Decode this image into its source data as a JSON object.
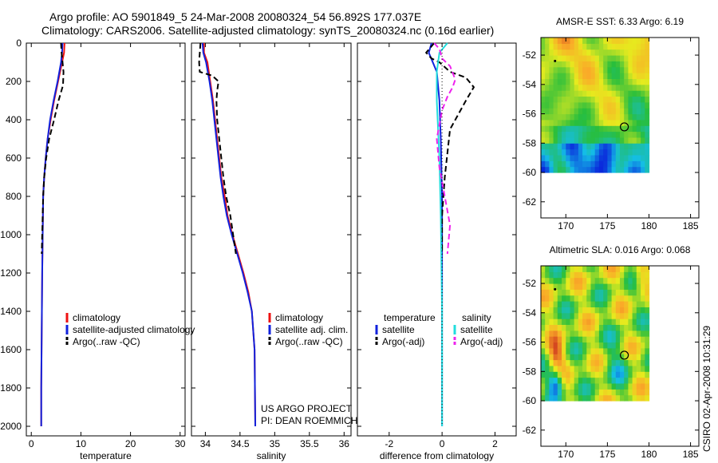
{
  "page": {
    "title_line1": "Argo profile: AO 5901849_5 24-Mar-2008 20080324_54 56.892S 177.037E",
    "title_line2": "Climatology: CARS2006. Satellite-adjusted climatology: synTS_20080324.nc (0.16d earlier)",
    "credit": "US ARGO PROJECT",
    "pi": "PI: DEAN ROEMMICH",
    "stamp": "CSIRO 02-Apr-2008 10:31:29"
  },
  "colors": {
    "red": "#ee1111",
    "blue": "#1122dd",
    "black": "#000000",
    "cyan": "#22dddd",
    "magenta": "#ee22ee"
  },
  "chart_data": [
    {
      "type": "line",
      "xlabel": "temperature",
      "ylabel": "",
      "xlim": [
        -1,
        31
      ],
      "ylim": [
        2050,
        0
      ],
      "xticks": [
        "0",
        "10",
        "20",
        "30"
      ],
      "xtick_values": [
        0,
        10,
        20,
        30
      ],
      "yticks": [
        "0",
        "200",
        "400",
        "600",
        "800",
        "1000",
        "1200",
        "1400",
        "1600",
        "1800",
        "2000"
      ],
      "ytick_values": [
        0,
        200,
        400,
        600,
        800,
        1000,
        1200,
        1400,
        1600,
        1800,
        2000
      ],
      "legend": {
        "position": "lower-left",
        "entries": [
          {
            "label": "climatology",
            "color": "red",
            "dash": "solid"
          },
          {
            "label": "satellite-adjusted climatology",
            "color": "blue",
            "dash": "solid"
          },
          {
            "label": "Argo(..raw -QC)",
            "color": "black",
            "dash": "dashed"
          }
        ]
      },
      "series": [
        {
          "name": "climatology",
          "color": "red",
          "dash": "solid",
          "x": [
            6.7,
            6.6,
            6.2,
            5.4,
            4.6,
            3.9,
            3.3,
            2.9,
            2.6,
            2.4,
            2.3,
            2.2,
            2.1,
            2.0,
            2.0
          ],
          "y": [
            0,
            50,
            100,
            200,
            300,
            400,
            500,
            600,
            700,
            800,
            1000,
            1200,
            1500,
            1800,
            2000
          ]
        },
        {
          "name": "satellite-adjusted climatology",
          "color": "blue",
          "dash": "solid",
          "x": [
            6.3,
            6.2,
            6.0,
            5.3,
            4.5,
            3.8,
            3.3,
            2.9,
            2.6,
            2.4,
            2.3,
            2.2,
            2.1,
            2.0,
            2.0
          ],
          "y": [
            0,
            50,
            100,
            200,
            300,
            400,
            500,
            600,
            700,
            800,
            1000,
            1200,
            1500,
            1800,
            2000
          ]
        },
        {
          "name": "Argo(..raw -QC)",
          "color": "black",
          "dash": "dashed",
          "x": [
            6.0,
            6.1,
            6.3,
            6.5,
            6.4,
            5.5,
            4.6,
            3.6,
            3.0,
            2.6,
            2.4,
            2.3,
            2.2,
            2.1
          ],
          "y": [
            0,
            50,
            100,
            150,
            220,
            300,
            400,
            500,
            600,
            700,
            800,
            900,
            1000,
            1100
          ]
        }
      ]
    },
    {
      "type": "line",
      "xlabel": "salinity",
      "xlim": [
        33.8,
        36.1
      ],
      "ylim": [
        2050,
        0
      ],
      "xticks": [
        "34",
        "34.5",
        "35",
        "35.5",
        "36"
      ],
      "xtick_values": [
        34,
        34.5,
        35,
        35.5,
        36
      ],
      "yticks": [],
      "ytick_values": [
        0,
        200,
        400,
        600,
        800,
        1000,
        1200,
        1400,
        1600,
        1800,
        2000
      ],
      "legend": {
        "position": "lower-center",
        "entries": [
          {
            "label": "climatology",
            "color": "red",
            "dash": "solid"
          },
          {
            "label": "satellite adj. clim.",
            "color": "blue",
            "dash": "solid"
          },
          {
            "label": "Argo(..raw -QC)",
            "color": "black",
            "dash": "dashed"
          }
        ]
      },
      "series": [
        {
          "name": "climatology",
          "color": "red",
          "dash": "solid",
          "x": [
            33.98,
            33.98,
            34.03,
            34.07,
            34.11,
            34.14,
            34.17,
            34.2,
            34.23,
            34.28,
            34.32,
            34.39,
            34.47,
            34.55,
            34.62,
            34.67,
            34.71,
            34.72
          ],
          "y": [
            0,
            50,
            100,
            200,
            300,
            400,
            500,
            600,
            700,
            800,
            900,
            1000,
            1100,
            1200,
            1300,
            1400,
            1600,
            2000
          ]
        },
        {
          "name": "satellite adj. clim.",
          "color": "blue",
          "dash": "solid",
          "x": [
            33.96,
            33.97,
            34.01,
            34.06,
            34.1,
            34.13,
            34.16,
            34.19,
            34.22,
            34.26,
            34.31,
            34.38,
            34.46,
            34.54,
            34.61,
            34.67,
            34.71,
            34.72
          ],
          "y": [
            0,
            50,
            100,
            200,
            300,
            400,
            500,
            600,
            700,
            800,
            900,
            1000,
            1100,
            1200,
            1300,
            1400,
            1600,
            2000
          ]
        },
        {
          "name": "Argo(..raw -QC)",
          "color": "black",
          "dash": "dashed",
          "x": [
            33.93,
            33.91,
            33.92,
            34.1,
            34.19,
            34.17,
            34.16,
            34.17,
            34.2,
            34.23,
            34.26,
            34.3,
            34.36,
            34.4,
            34.44
          ],
          "y": [
            0,
            100,
            150,
            170,
            200,
            250,
            300,
            400,
            500,
            600,
            700,
            800,
            900,
            1000,
            1100
          ]
        }
      ]
    },
    {
      "type": "line",
      "xlabel": "difference from climatology",
      "xlim": [
        -3.2,
        2.8
      ],
      "ylim": [
        2050,
        0
      ],
      "xticks": [
        "-2",
        "0",
        "2"
      ],
      "xtick_values": [
        -2,
        0,
        2
      ],
      "yticks": [],
      "ytick_values": [
        0,
        200,
        400,
        600,
        800,
        1000,
        1200,
        1400,
        1600,
        1800,
        2000
      ],
      "legend": {
        "position": "lower-left",
        "entries": [
          {
            "label": "temperature",
            "color": "",
            "dash": "none"
          },
          {
            "label": "satellite",
            "color": "blue",
            "dash": "solid"
          },
          {
            "label": "Argo(-adj)",
            "color": "black",
            "dash": "dashed"
          },
          {
            "label": "salinity",
            "color": "",
            "dash": "none"
          },
          {
            "label": "satellite",
            "color": "cyan",
            "dash": "solid"
          },
          {
            "label": "Argo(-adj)",
            "color": "magenta",
            "dash": "dashed"
          }
        ]
      },
      "series": [
        {
          "name": "temperature satellite",
          "color": "blue",
          "dash": "solid",
          "x": [
            -0.4,
            -0.5,
            -0.2,
            -0.1,
            -0.05,
            0.0,
            0.0,
            0.0
          ],
          "y": [
            0,
            50,
            150,
            300,
            500,
            800,
            1400,
            2000
          ]
        },
        {
          "name": "temperature Argo(-adj)",
          "color": "black",
          "dash": "dashed",
          "x": [
            -0.3,
            -0.6,
            -0.4,
            -0.1,
            0.3,
            0.9,
            1.2,
            0.9,
            0.3,
            0.1,
            0.0,
            0.0
          ],
          "y": [
            0,
            50,
            80,
            100,
            150,
            180,
            230,
            300,
            450,
            700,
            900,
            1100
          ]
        },
        {
          "name": "salinity satellite",
          "color": "cyan",
          "dash": "solid",
          "x": [
            0.2,
            -0.1,
            -0.2,
            -0.2,
            -0.1,
            -0.05,
            0.0,
            0.0
          ],
          "y": [
            0,
            50,
            150,
            300,
            600,
            900,
            1400,
            2000
          ]
        },
        {
          "name": "salinity Argo(-adj)",
          "color": "magenta",
          "dash": "dashed",
          "x": [
            -0.3,
            -0.1,
            0.0,
            0.3,
            0.5,
            0.4,
            0.2,
            0.0,
            -0.2,
            -0.1,
            0.1,
            0.3,
            0.2
          ],
          "y": [
            0,
            30,
            80,
            120,
            190,
            230,
            280,
            350,
            500,
            650,
            800,
            950,
            1100
          ]
        },
        {
          "name": "zero line",
          "color": "black",
          "dash": "dotted",
          "x": [
            0,
            0
          ],
          "y": [
            0,
            2000
          ]
        }
      ]
    },
    {
      "type": "heatmap",
      "title": "AMSR-E SST: 6.33 Argo: 6.19",
      "xlim": [
        167,
        186
      ],
      "ylim": [
        -63.1,
        -50.8
      ],
      "xticks": [
        "170",
        "175",
        "180",
        "185"
      ],
      "xtick_values": [
        170,
        175,
        180,
        185
      ],
      "yticks": [
        "-52",
        "-54",
        "-56",
        "-58",
        "-60",
        "-62"
      ],
      "ytick_values": [
        -52,
        -54,
        -56,
        -58,
        -60,
        -62
      ],
      "grid_extent": {
        "lon": [
          167,
          180
        ],
        "lat": [
          -60,
          -50.8
        ]
      },
      "float_position": {
        "lon": 177.037,
        "lat": -56.892
      },
      "marker": {
        "lon": 168.7,
        "lat": -52.4
      }
    },
    {
      "type": "heatmap",
      "title": "Altimetric SLA: 0.016 Argo: 0.068",
      "xlim": [
        167,
        186
      ],
      "ylim": [
        -63.1,
        -50.8
      ],
      "xticks": [
        "170",
        "175",
        "180",
        "185"
      ],
      "xtick_values": [
        170,
        175,
        180,
        185
      ],
      "yticks": [
        "-52",
        "-54",
        "-56",
        "-58",
        "-60",
        "-62"
      ],
      "ytick_values": [
        -52,
        -54,
        -56,
        -58,
        -60,
        -62
      ],
      "grid_extent": {
        "lon": [
          167,
          180
        ],
        "lat": [
          -60,
          -50.8
        ]
      },
      "float_position": {
        "lon": 177.037,
        "lat": -56.892
      },
      "marker": {
        "lon": 168.7,
        "lat": -52.4
      }
    }
  ]
}
